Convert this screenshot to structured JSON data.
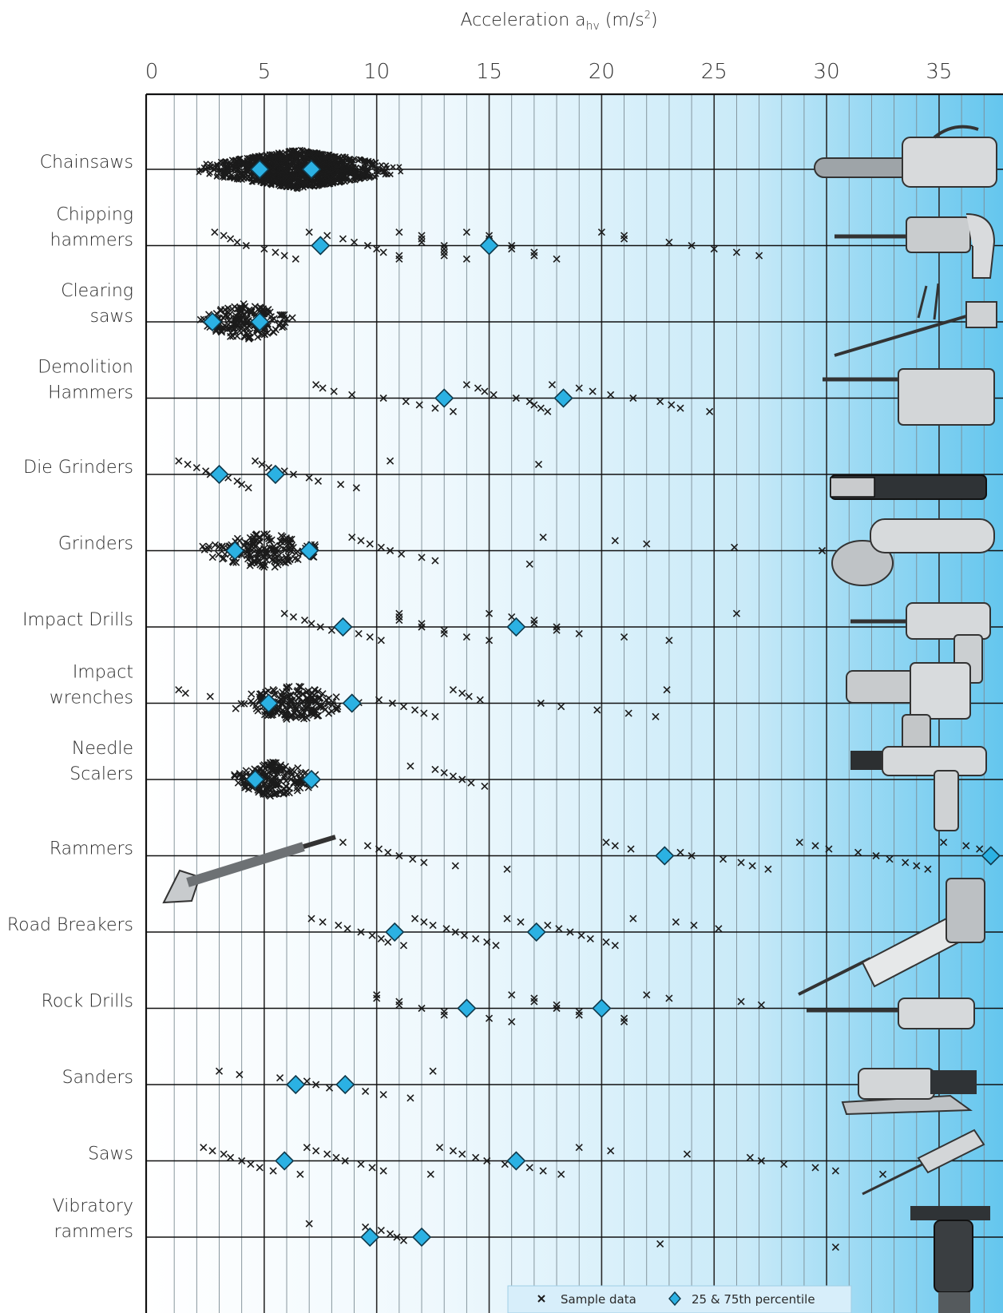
{
  "chart_data": {
    "type": "scatter",
    "xlabel": "Acceleration a",
    "xlabel_subscript": "hv",
    "xlabel_unit": "(m/s",
    "xlabel_unit_sup": "2",
    "xlabel_unit_close": ")",
    "xlim": [
      0,
      37.5
    ],
    "xticks": [
      0,
      5,
      10,
      15,
      20,
      25,
      30,
      35
    ],
    "legend": {
      "position": "bottom-right",
      "sample_label": "Sample data",
      "percentile_label": "25 & 75th percentile"
    },
    "colors": {
      "percentile": "#2bb1e3",
      "sample": "#1b1b1b",
      "gradient_start": "#ffffff",
      "gradient_end": "#64c6ee"
    },
    "tools": [
      {
        "lines": [
          "Chainsaws"
        ],
        "p25": 4.8,
        "p75": 7.1,
        "cloud": {
          "start": 1.5,
          "end": 11.5,
          "spread": 0.9,
          "dense": true
        },
        "samples": []
      },
      {
        "lines": [
          "Chipping",
          "hammers"
        ],
        "p25": 7.5,
        "p75": 15.0,
        "samples": [
          2.8,
          3.2,
          3.5,
          3.8,
          4.2,
          5.0,
          5.5,
          5.9,
          6.4,
          7.0,
          7.8,
          8.5,
          9.0,
          9.6,
          10.0,
          10.3,
          11.0,
          11.0,
          11.0,
          12.0,
          12.0,
          12.0,
          13.0,
          13.0,
          13.0,
          13.0,
          14.0,
          14.0,
          15.0,
          15.0,
          15.0,
          16.0,
          16.0,
          17.0,
          17.0,
          18.0,
          20.0,
          21.0,
          21.0,
          23.0,
          24.0,
          25.0,
          26.0,
          27.0
        ]
      },
      {
        "lines": [
          "Clearing",
          "saws"
        ],
        "p25": 2.7,
        "p75": 4.8,
        "cloud": {
          "start": 1.3,
          "end": 7.0,
          "spread": 0.55,
          "dense": false
        },
        "samples": []
      },
      {
        "lines": [
          "Demolition",
          "Hammers"
        ],
        "p25": 13.0,
        "p75": 18.3,
        "samples": [
          7.3,
          7.6,
          8.1,
          8.9,
          10.3,
          11.3,
          11.9,
          12.6,
          13.4,
          14.0,
          14.5,
          14.8,
          15.2,
          16.2,
          16.8,
          17.0,
          17.3,
          17.6,
          17.8,
          19.0,
          19.6,
          20.4,
          21.4,
          22.6,
          23.1,
          23.5,
          24.8
        ]
      },
      {
        "lines": [
          "Die Grinders"
        ],
        "p25": 3.0,
        "p75": 5.5,
        "samples": [
          1.2,
          1.6,
          2.0,
          2.4,
          2.6,
          3.4,
          3.8,
          4.0,
          4.3,
          4.6,
          4.9,
          5.2,
          5.9,
          6.3,
          7.0,
          7.4,
          8.4,
          9.1,
          10.6,
          17.2
        ]
      },
      {
        "lines": [
          "Grinders"
        ],
        "p25": 3.7,
        "p75": 7.0,
        "cloud": {
          "start": 1.6,
          "end": 8.5,
          "spread": 0.6,
          "dense": false
        },
        "samples": [
          8.9,
          9.3,
          9.7,
          10.2,
          10.6,
          11.1,
          12.0,
          12.6,
          16.8,
          17.4,
          20.6,
          22.0,
          25.9,
          29.8
        ]
      },
      {
        "lines": [
          "Impact Drills"
        ],
        "p25": 8.5,
        "p75": 16.2,
        "samples": [
          5.9,
          6.3,
          6.8,
          7.1,
          7.5,
          8.0,
          9.2,
          9.7,
          10.2,
          11.0,
          11.0,
          11.0,
          12.0,
          12.0,
          13.0,
          13.0,
          14.0,
          15.0,
          15.0,
          16.0,
          17.0,
          17.0,
          18.0,
          18.0,
          19.0,
          21.0,
          23.0,
          26.0
        ]
      },
      {
        "lines": [
          "Impact",
          "wrenches"
        ],
        "p25": 5.2,
        "p75": 8.9,
        "cloud": {
          "start": 3.0,
          "end": 9.5,
          "spread": 0.55,
          "dense": false
        },
        "samples": [
          1.2,
          1.5,
          2.6,
          10.1,
          10.7,
          11.2,
          11.7,
          12.1,
          12.6,
          13.4,
          13.8,
          14.1,
          14.6,
          17.3,
          18.2,
          19.8,
          21.2,
          22.4,
          22.9
        ]
      },
      {
        "lines": [
          "Needle",
          "Scalers"
        ],
        "p25": 4.6,
        "p75": 7.1,
        "cloud": {
          "start": 3.0,
          "end": 8.0,
          "spread": 0.5,
          "dense": false
        },
        "samples": [
          11.5,
          12.6,
          13.0,
          13.4,
          13.8,
          14.2,
          14.8
        ]
      },
      {
        "lines": [
          "Rammers"
        ],
        "p25": 22.8,
        "p75": 37.3,
        "samples": [
          8.5,
          9.6,
          10.1,
          10.5,
          11.0,
          11.6,
          12.1,
          13.5,
          15.8,
          20.2,
          20.6,
          21.3,
          23.5,
          24.0,
          25.4,
          26.2,
          26.7,
          27.4,
          28.8,
          29.5,
          30.1,
          31.4,
          32.2,
          32.8,
          33.5,
          34.0,
          34.5,
          35.2,
          36.2,
          36.8
        ]
      },
      {
        "lines": [
          "Road Breakers"
        ],
        "p25": 10.8,
        "p75": 17.1,
        "samples": [
          7.1,
          7.6,
          8.3,
          8.7,
          9.3,
          9.8,
          10.2,
          10.5,
          11.2,
          11.7,
          12.1,
          12.5,
          13.1,
          13.5,
          13.9,
          14.4,
          14.9,
          15.3,
          15.8,
          16.4,
          17.6,
          18.1,
          18.6,
          19.1,
          19.5,
          20.2,
          20.6,
          21.4,
          23.3,
          24.1,
          25.2
        ]
      },
      {
        "lines": [
          "Rock Drills"
        ],
        "p25": 14.0,
        "p75": 20.0,
        "samples": [
          10.0,
          10.0,
          11.0,
          11.0,
          12.0,
          13.0,
          13.0,
          15.0,
          16.0,
          16.0,
          17.0,
          17.0,
          18.0,
          18.0,
          19.0,
          19.0,
          21.0,
          21.0,
          22.0,
          23.0,
          26.2,
          27.1
        ]
      },
      {
        "lines": [
          "Sanders"
        ],
        "p25": 6.4,
        "p75": 8.6,
        "samples": [
          3.0,
          3.9,
          5.7,
          6.9,
          7.3,
          7.9,
          9.5,
          10.3,
          11.5,
          12.5
        ]
      },
      {
        "lines": [
          "Saws"
        ],
        "p25": 5.9,
        "p75": 16.2,
        "samples": [
          2.3,
          2.7,
          3.2,
          3.5,
          4.0,
          4.4,
          4.8,
          5.4,
          6.6,
          6.9,
          7.3,
          7.8,
          8.2,
          8.6,
          9.3,
          9.8,
          10.3,
          12.4,
          12.8,
          13.4,
          13.8,
          14.4,
          14.9,
          15.7,
          16.8,
          17.4,
          18.2,
          19.0,
          20.4,
          23.8,
          26.6,
          27.1,
          28.1,
          29.5,
          30.4,
          32.5
        ]
      },
      {
        "lines": [
          "Vibratory",
          "rammers"
        ],
        "p25": 9.7,
        "p75": 12.0,
        "samples": [
          7.0,
          9.5,
          10.2,
          10.6,
          10.9,
          11.2,
          22.6,
          30.4
        ]
      }
    ]
  }
}
